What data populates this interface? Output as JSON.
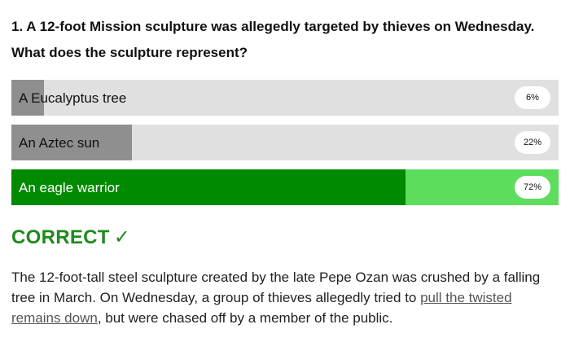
{
  "quiz": {
    "question_line1": "1. A 12-foot Mission sculpture was allegedly targeted by thieves on Wednesday.",
    "question_line2": "What does the sculpture represent?",
    "answers": [
      {
        "label": "A Eucalyptus tree",
        "percent_text": "6%",
        "percent": 6,
        "correct": false
      },
      {
        "label": "An Aztec sun",
        "percent_text": "22%",
        "percent": 22,
        "correct": false
      },
      {
        "label": "An eagle warrior",
        "percent_text": "72%",
        "percent": 72,
        "correct": true
      }
    ],
    "result_text": "CORRECT",
    "result_icon": "check-icon",
    "result_glyph": "✓",
    "explanation_before": "The 12-foot-tall steel sculpture created by the late Pepe Ozan was crushed by a falling tree in March. On Wednesday, a group of thieves allegedly tried to ",
    "explanation_link": "pull the twisted remains down",
    "explanation_after": ", but were chased off by a member of the public."
  },
  "colors": {
    "correct_fill": "#008a00",
    "correct_track": "#5ddd5d",
    "neutral_fill": "#8f8f8f",
    "neutral_track": "#e0e0e0",
    "result_green": "#1f8a1f"
  }
}
